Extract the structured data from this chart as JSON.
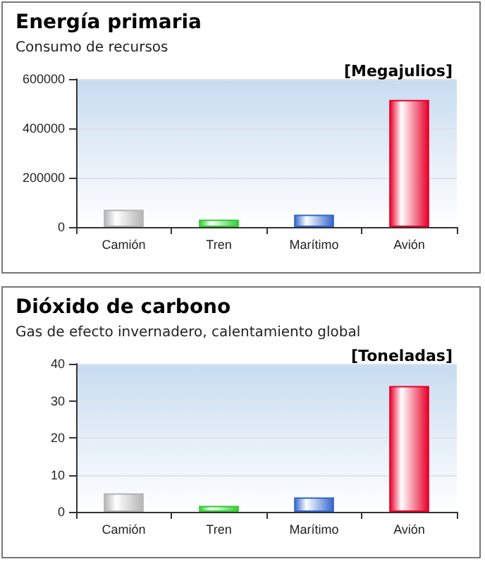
{
  "chart_data": [
    {
      "type": "bar",
      "title": "Energía primaria",
      "subtitle": "Consumo de recursos",
      "ylabel": "[Megajulios]",
      "categories": [
        "Camión",
        "Tren",
        "Marítimo",
        "Avión"
      ],
      "values": [
        70000,
        30000,
        50000,
        515000
      ],
      "colors": [
        "#b4b4b4",
        "#33cc33",
        "#3366cc",
        "#e8002a"
      ],
      "ylim": [
        0,
        600000
      ],
      "yticks": [
        0,
        200000,
        400000,
        600000
      ],
      "grid": "y"
    },
    {
      "type": "bar",
      "title": "Dióxido de carbono",
      "subtitle": "Gas de efecto invernadero, calentamiento global",
      "ylabel": "[Toneladas]",
      "categories": [
        "Camión",
        "Tren",
        "Marítimo",
        "Avión"
      ],
      "values": [
        5,
        1.6,
        3.9,
        34
      ],
      "colors": [
        "#b4b4b4",
        "#33cc33",
        "#3366cc",
        "#e8002a"
      ],
      "ylim": [
        0,
        40
      ],
      "yticks": [
        0,
        10,
        20,
        30,
        40
      ],
      "grid": "y"
    }
  ]
}
